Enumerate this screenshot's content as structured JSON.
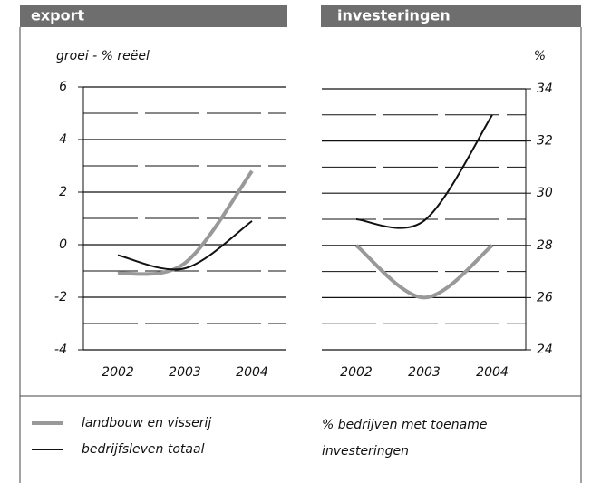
{
  "chart_data": [
    {
      "type": "line",
      "title": "export",
      "ylabel": "groei - % reëel",
      "categories": [
        "2002",
        "2003",
        "2004"
      ],
      "ylim": [
        -4,
        6
      ],
      "yticks": [
        -4,
        -2,
        0,
        2,
        4,
        6
      ],
      "grid": true,
      "smooth": true,
      "series": [
        {
          "name": "landbouw en visserij",
          "color": "#999999",
          "values": [
            -1.1,
            -0.7,
            2.8
          ]
        },
        {
          "name": "bedrijfsleven totaal",
          "color": "#111111",
          "values": [
            -0.4,
            -0.9,
            0.9
          ]
        }
      ]
    },
    {
      "type": "line",
      "title": "investeringen",
      "ylabel": "%",
      "categories": [
        "2002",
        "2003",
        "2004"
      ],
      "y2lim": [
        24,
        34
      ],
      "y2ticks": [
        24,
        26,
        28,
        30,
        32,
        34
      ],
      "grid": true,
      "smooth": true,
      "note": "% bedrijven met toename investeringen",
      "series": [
        {
          "color": "#999999",
          "axis": "y2",
          "values": [
            28,
            26,
            28
          ]
        },
        {
          "color": "#111111",
          "axis": "y2",
          "values": [
            29,
            28.95,
            33
          ]
        }
      ]
    }
  ]
}
